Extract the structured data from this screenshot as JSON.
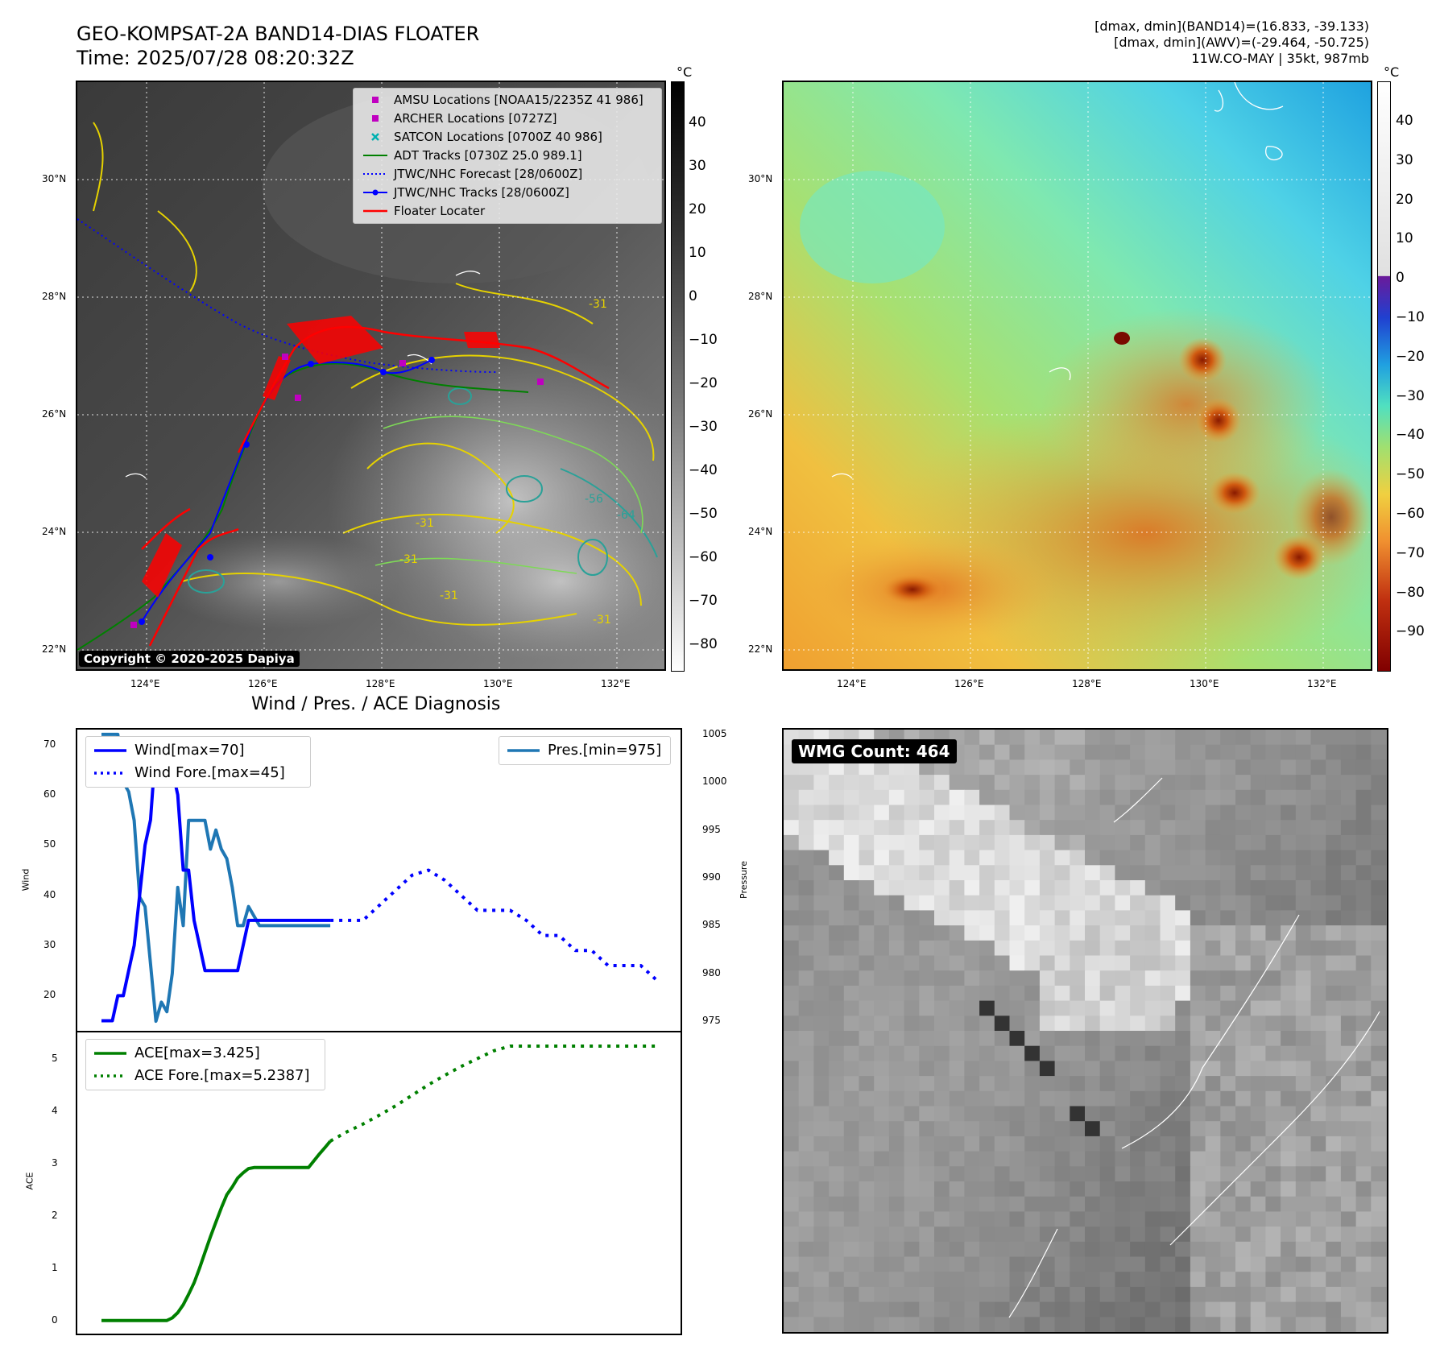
{
  "header": {
    "title_line1": "GEO-KOMPSAT-2A BAND14-DIAS FLOATER",
    "title_line2": "Time: 2025/07/28 08:20:32Z",
    "info_line1": "[dmax, dmin](BAND14)=(16.833, -39.133)",
    "info_line2": "[dmax, dmin](AWV)=(-29.464, -50.725)",
    "info_line3": "11W.CO-MAY | 35kt, 987mb"
  },
  "maps": {
    "lat_labels": [
      "30°N",
      "28°N",
      "26°N",
      "24°N",
      "22°N"
    ],
    "lon_labels": [
      "124°E",
      "126°E",
      "128°E",
      "130°E",
      "132°E"
    ],
    "colorbar_unit": "°C",
    "ir_colorbar_ticks": [
      "40",
      "30",
      "20",
      "10",
      "0",
      "−10",
      "−20",
      "−30",
      "−40",
      "−50",
      "−60",
      "−70",
      "−80"
    ],
    "wv_colorbar_ticks": [
      "40",
      "30",
      "20",
      "10",
      "0",
      "−10",
      "−20",
      "−30",
      "−40",
      "−50",
      "−60",
      "−70",
      "−80",
      "−90"
    ],
    "copyright": "Copyright © 2020-2025 Dapiya",
    "contour_labels": [
      "-31",
      "-31",
      "-31",
      "-31",
      "-31",
      "-56",
      "-64"
    ],
    "legend": [
      {
        "label": "AMSU Locations [NOAA15/2235Z 41 986]",
        "symbol": "square",
        "color": "#c000c0"
      },
      {
        "label": "ARCHER Locations [0727Z]",
        "symbol": "square",
        "color": "#c000c0"
      },
      {
        "label": "SATCON Locations [0700Z 40 986]",
        "symbol": "x",
        "color": "#00b0b0"
      },
      {
        "label": "ADT Tracks [0730Z 25.0 989.1]",
        "symbol": "line",
        "color": "#008000"
      },
      {
        "label": "JTWC/NHC Forecast [28/0600Z]",
        "symbol": "dotted",
        "color": "#0000ff"
      },
      {
        "label": "JTWC/NHC Tracks [28/0600Z]",
        "symbol": "line-dot",
        "color": "#0000ff"
      },
      {
        "label": "Floater Locater",
        "symbol": "line",
        "color": "#ff0000"
      }
    ]
  },
  "diag": {
    "title": "Wind / Pres. / ACE Diagnosis",
    "wind_ylabel": "Wind",
    "pres_ylabel": "Pressure",
    "ace_ylabel": "ACE",
    "wind_ticks": [
      "70",
      "60",
      "50",
      "40",
      "30",
      "20"
    ],
    "pres_ticks": [
      "1005",
      "1000",
      "995",
      "990",
      "985",
      "980",
      "975"
    ],
    "ace_ticks": [
      "5",
      "4",
      "3",
      "2",
      "1",
      "0"
    ],
    "legend_wind": "Wind[max=70]",
    "legend_wind_fore": "Wind Fore.[max=45]",
    "legend_pres": "Pres.[min=975]",
    "legend_ace": "ACE[max=3.425]",
    "legend_ace_fore": "ACE Fore.[max=5.2387]"
  },
  "wmg": {
    "badge": "WMG Count: 464"
  },
  "colors": {
    "wind": "#0000ff",
    "pressure": "#1f77b4",
    "ace": "#008000",
    "floater": "#ff0000",
    "adt": "#008000"
  },
  "chart_data": [
    {
      "type": "line",
      "title": "Wind / Pres. / ACE Diagnosis",
      "ylabel": "Wind",
      "ylim": [
        13,
        73
      ],
      "series": [
        {
          "name": "Wind[max=70]",
          "style": "solid",
          "x": [
            0,
            1,
            2,
            3,
            4,
            5,
            6,
            7,
            8,
            9,
            10,
            11,
            12,
            13,
            14,
            15,
            16,
            17,
            18,
            19,
            20,
            21,
            22,
            23,
            24,
            25,
            26,
            27,
            28,
            29,
            30,
            31,
            32,
            33,
            34,
            35,
            36,
            37,
            38,
            39,
            40,
            41,
            42
          ],
          "y": [
            15,
            15,
            15,
            20,
            20,
            25,
            30,
            40,
            50,
            55,
            70,
            65,
            65,
            65,
            60,
            45,
            45,
            35,
            30,
            25,
            25,
            25,
            25,
            25,
            25,
            25,
            30,
            35,
            35,
            35,
            35,
            35,
            35,
            35,
            35,
            35,
            35,
            35,
            35,
            35,
            35,
            35,
            35
          ]
        },
        {
          "name": "Wind Fore.[max=45]",
          "style": "dotted",
          "x": [
            42,
            45,
            48,
            51,
            54,
            57,
            60,
            63,
            66,
            69,
            72,
            75,
            78,
            81,
            84,
            87,
            90,
            93,
            96,
            99,
            102
          ],
          "y": [
            35,
            35,
            35,
            38,
            41,
            44,
            45,
            43,
            40,
            37,
            37,
            37,
            35,
            32,
            32,
            29,
            29,
            26,
            26,
            26,
            23
          ]
        },
        {
          "name": "Pres.[min=975]",
          "axis": "right",
          "ylim": [
            974,
            1005.5
          ],
          "x": [
            0,
            1,
            2,
            3,
            4,
            5,
            6,
            7,
            8,
            9,
            10,
            11,
            12,
            13,
            14,
            15,
            16,
            17,
            18,
            19,
            20,
            21,
            22,
            23,
            24,
            25,
            26,
            27,
            28,
            29,
            30,
            31,
            32,
            33,
            34,
            35,
            36,
            37,
            38,
            39,
            40,
            41,
            42
          ],
          "y": [
            1005,
            1005,
            1005,
            1005,
            1000,
            999,
            996,
            988,
            987,
            981,
            975,
            977,
            976,
            980,
            989,
            985,
            996,
            996,
            996,
            996,
            993,
            995,
            993,
            992,
            989,
            985,
            985,
            987,
            986,
            985,
            985,
            985,
            985,
            985,
            985,
            985,
            985,
            985,
            985,
            985,
            985,
            985,
            985
          ]
        }
      ]
    },
    {
      "type": "line",
      "ylabel": "ACE",
      "ylim": [
        -0.25,
        5.5
      ],
      "series": [
        {
          "name": "ACE[max=3.425]",
          "style": "solid",
          "x": [
            0,
            3,
            6,
            9,
            12,
            13,
            14,
            15,
            16,
            17,
            18,
            19,
            20,
            21,
            22,
            23,
            24,
            25,
            26,
            27,
            28,
            29,
            30,
            31,
            32,
            33,
            34,
            35,
            36,
            37,
            38,
            39,
            40,
            41,
            42
          ],
          "y": [
            0,
            0,
            0,
            0,
            0,
            0.05,
            0.15,
            0.3,
            0.5,
            0.72,
            1.0,
            1.3,
            1.6,
            1.88,
            2.15,
            2.4,
            2.55,
            2.72,
            2.82,
            2.9,
            2.92,
            2.92,
            2.92,
            2.92,
            2.92,
            2.92,
            2.92,
            2.92,
            2.92,
            2.92,
            2.92,
            3.05,
            3.18,
            3.3,
            3.425
          ]
        },
        {
          "name": "ACE Fore.[max=5.2387]",
          "style": "dotted",
          "x": [
            42,
            45,
            48,
            51,
            54,
            57,
            60,
            63,
            66,
            69,
            72,
            75,
            78,
            81,
            84,
            87,
            90,
            93,
            96,
            99,
            102
          ],
          "y": [
            3.425,
            3.6,
            3.75,
            3.92,
            4.1,
            4.3,
            4.5,
            4.68,
            4.85,
            5.0,
            5.15,
            5.2387,
            5.2387,
            5.2387,
            5.2387,
            5.2387,
            5.2387,
            5.2387,
            5.2387,
            5.2387,
            5.2387
          ]
        }
      ]
    }
  ]
}
